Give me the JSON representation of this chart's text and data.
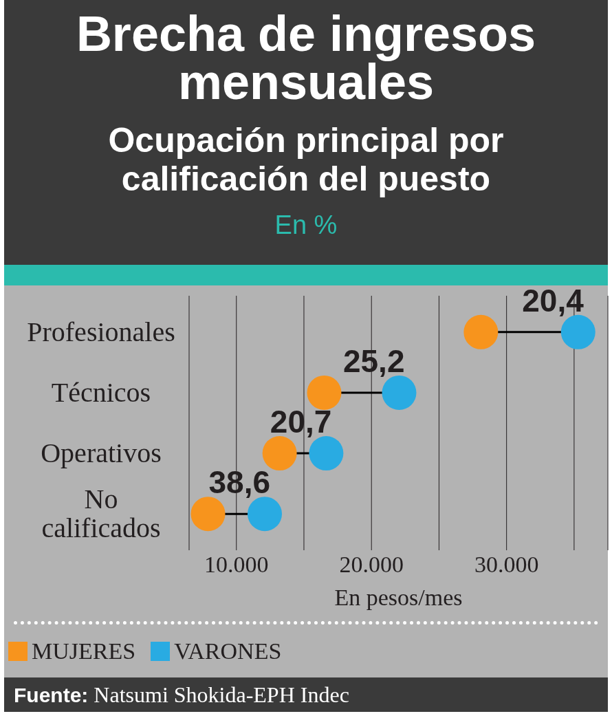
{
  "chart_data": {
    "type": "scatter",
    "title": "Brecha de ingresos mensuales",
    "subtitle": "Ocupación principal por calificación del puesto",
    "xlabel": "En pesos/mes",
    "categories": [
      "Profesionales",
      "Técnicos",
      "Operativos",
      "No calificados"
    ],
    "series": [
      {
        "name": "MUJERES",
        "color": "#f7941d",
        "values": [
          28100,
          16500,
          13200,
          7900
        ]
      },
      {
        "name": "VARONES",
        "color": "#29abe2",
        "values": [
          35300,
          22050,
          16650,
          12100
        ]
      }
    ],
    "orientation": "horizontal",
    "xlim": [
      6500,
      37500
    ],
    "xticks": [
      {
        "value": 10000,
        "label": "10.000"
      },
      {
        "value": 15000,
        "label": null
      },
      {
        "value": 20000,
        "label": "20.000"
      },
      {
        "value": 25000,
        "label": null
      },
      {
        "value": 30000,
        "label": "30.000"
      },
      {
        "value": 35000,
        "label": null
      }
    ],
    "grid": "x",
    "legend": "bottom",
    "marker": "circle",
    "annotations": [
      "En %",
      {
        "text": "20,4",
        "x": 35300,
        "y": "Profesionales"
      },
      {
        "text": "25,2",
        "x": 22050,
        "y": "Técnicos"
      },
      {
        "text": "20,7",
        "x": 16650,
        "y": "Operativos"
      },
      {
        "text": "38,6",
        "x": 12100,
        "y": "No calificados"
      },
      "Fuente: Natsumi Shokida-EPH Indec"
    ]
  }
}
